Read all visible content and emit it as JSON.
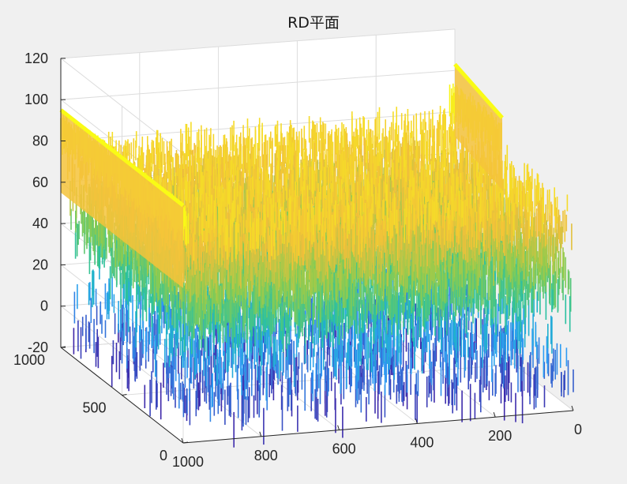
{
  "chart_data": {
    "type": "surface",
    "title": "RD平面",
    "xlabel": "",
    "ylabel": "",
    "zlabel": "",
    "x_range": [
      0,
      1000
    ],
    "y_range": [
      0,
      1000
    ],
    "z_range": [
      -20,
      120
    ],
    "x_ticks": [
      "0",
      "200",
      "400",
      "600",
      "800",
      "1000"
    ],
    "y_ticks": [
      "0",
      "500",
      "1000"
    ],
    "z_ticks": [
      "-20",
      "0",
      "20",
      "40",
      "60",
      "80",
      "100",
      "120"
    ],
    "grid": true,
    "colormap": "parula",
    "surface": {
      "noise_floor_mean": 60,
      "noise_floor_min": -10,
      "noise_floor_max": 85,
      "ridge_values": [
        {
          "position": "x = 0 edge (all y)",
          "value": 95
        },
        {
          "position": "x = 1000 edge (y from about 600 to 1000)",
          "value": 95
        }
      ]
    },
    "colors": {
      "background": "#f0f0f0",
      "axes_face": "#ffffff",
      "grid": "#dcdcdc",
      "axis_line": "#262626",
      "colormap_stops": [
        "#3e26a8",
        "#2f9df5",
        "#17bfb0",
        "#8ccc4f",
        "#f2bf3a",
        "#f9fb15"
      ]
    }
  }
}
